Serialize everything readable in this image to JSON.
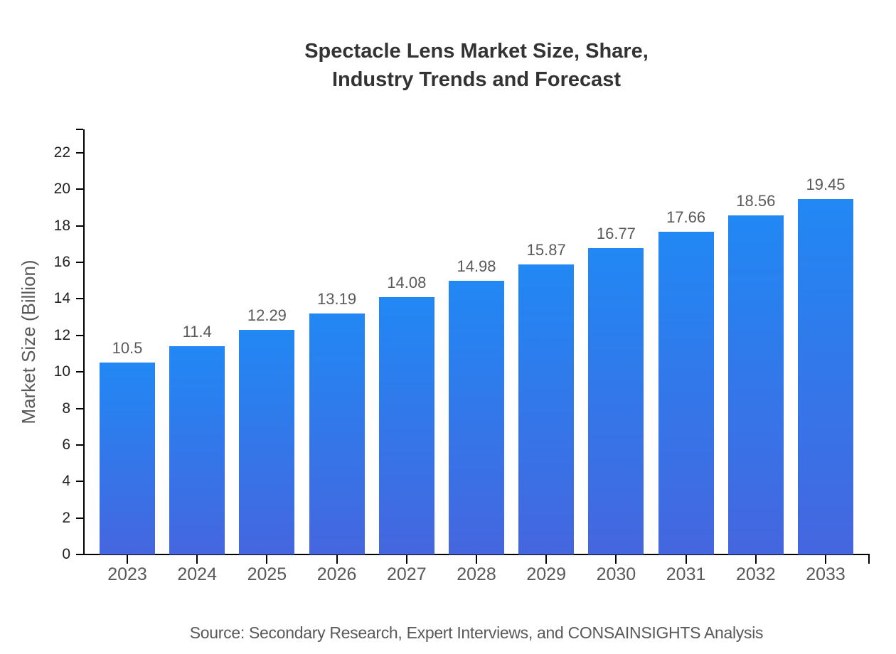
{
  "title": {
    "line1": "Spectacle Lens Market Size, Share,",
    "line2": "Industry Trends and Forecast"
  },
  "source": "Source: Secondary Research, Expert Interviews, and CONSAINSIGHTS Analysis",
  "chart_data": {
    "type": "bar",
    "title": "Spectacle Lens Market Size, Share, Industry Trends and Forecast",
    "categories": [
      "2023",
      "2024",
      "2025",
      "2026",
      "2027",
      "2028",
      "2029",
      "2030",
      "2031",
      "2032",
      "2033"
    ],
    "values": [
      10.5,
      11.4,
      12.29,
      13.19,
      14.08,
      14.98,
      15.87,
      16.77,
      17.66,
      18.56,
      19.45
    ],
    "xlabel": "",
    "ylabel": "Market Size (Billion)",
    "ylim": [
      0,
      23.3
    ],
    "yticks": [
      0,
      2,
      4,
      6,
      8,
      10,
      12,
      14,
      16,
      18,
      20,
      22
    ],
    "grid": false,
    "legend_position": "none",
    "value_labels_shown": true,
    "colors": {
      "bar_gradient_top": "#2188f4",
      "bar_gradient_bottom": "#4566df",
      "axis": "#000000",
      "title_text": "#333333",
      "label_text": "#595959",
      "tick_text": "#1f1f1f"
    }
  }
}
